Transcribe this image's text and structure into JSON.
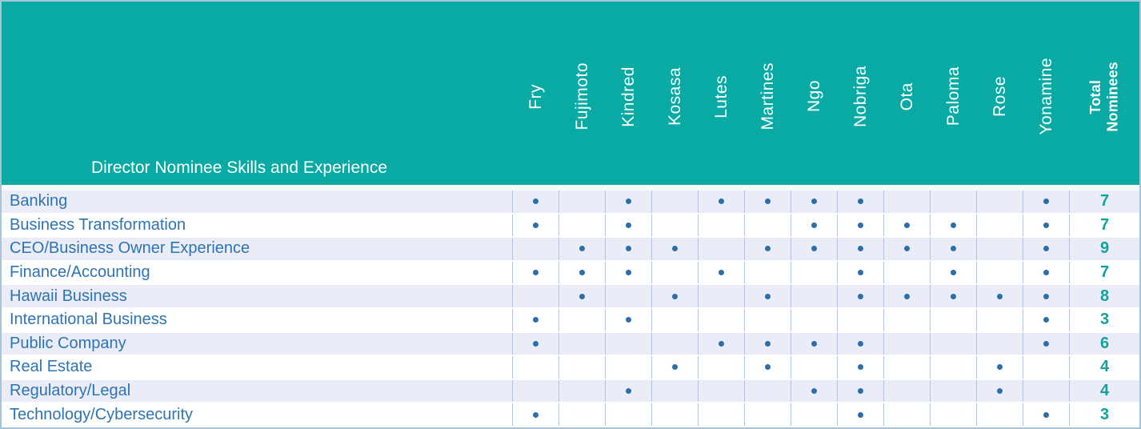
{
  "chart_data": {
    "type": "table",
    "title": "Director Nominee Skills and Experience",
    "columns": [
      "Fry",
      "Fujimoto",
      "Kindred",
      "Kosasa",
      "Lutes",
      "Martines",
      "Ngo",
      "Nobriga",
      "Ota",
      "Paloma",
      "Rose",
      "Yonamine"
    ],
    "total_column": "Total Nominees",
    "rows": [
      {
        "label": "Banking",
        "marks": [
          1,
          0,
          1,
          0,
          1,
          1,
          1,
          1,
          0,
          0,
          0,
          1
        ],
        "total": 7
      },
      {
        "label": "Business Transformation",
        "marks": [
          1,
          0,
          1,
          0,
          0,
          0,
          1,
          1,
          1,
          1,
          0,
          1
        ],
        "total": 7
      },
      {
        "label": "CEO/Business Owner Experience",
        "marks": [
          0,
          1,
          1,
          1,
          0,
          1,
          1,
          1,
          1,
          1,
          0,
          1
        ],
        "total": 9
      },
      {
        "label": "Finance/Accounting",
        "marks": [
          1,
          1,
          1,
          0,
          1,
          0,
          0,
          1,
          0,
          1,
          0,
          1
        ],
        "total": 7
      },
      {
        "label": "Hawaii Business",
        "marks": [
          0,
          1,
          0,
          1,
          0,
          1,
          0,
          1,
          1,
          1,
          1,
          1
        ],
        "total": 8
      },
      {
        "label": "International Business",
        "marks": [
          1,
          0,
          1,
          0,
          0,
          0,
          0,
          0,
          0,
          0,
          0,
          1
        ],
        "total": 3
      },
      {
        "label": "Public Company",
        "marks": [
          1,
          0,
          0,
          0,
          1,
          1,
          1,
          1,
          0,
          0,
          0,
          1
        ],
        "total": 6
      },
      {
        "label": "Real Estate",
        "marks": [
          0,
          0,
          0,
          1,
          0,
          1,
          0,
          1,
          0,
          0,
          1,
          0
        ],
        "total": 4
      },
      {
        "label": "Regulatory/Legal",
        "marks": [
          0,
          0,
          1,
          0,
          0,
          0,
          1,
          1,
          0,
          0,
          1,
          0
        ],
        "total": 4
      },
      {
        "label": "Technology/Cybersecurity",
        "marks": [
          1,
          0,
          0,
          0,
          0,
          0,
          0,
          1,
          0,
          0,
          0,
          1
        ],
        "total": 3
      }
    ],
    "dot_symbol": "•",
    "layout_hints": {
      "mark_style": "dot",
      "row_striping": "alternating",
      "column_header_rotation_deg": 90
    },
    "colors": {
      "header_background": "#09a9a4",
      "header_text": "#ffffff",
      "row_alternate_background": "#eaedf8",
      "row_plain_background": "#ffffff",
      "row_label_text": "#2e73b4",
      "dot": "#2d6ea9",
      "total_text": "#16a09c",
      "grid_border": "#b6c3de",
      "outer_border": "#a6c5d7"
    }
  }
}
